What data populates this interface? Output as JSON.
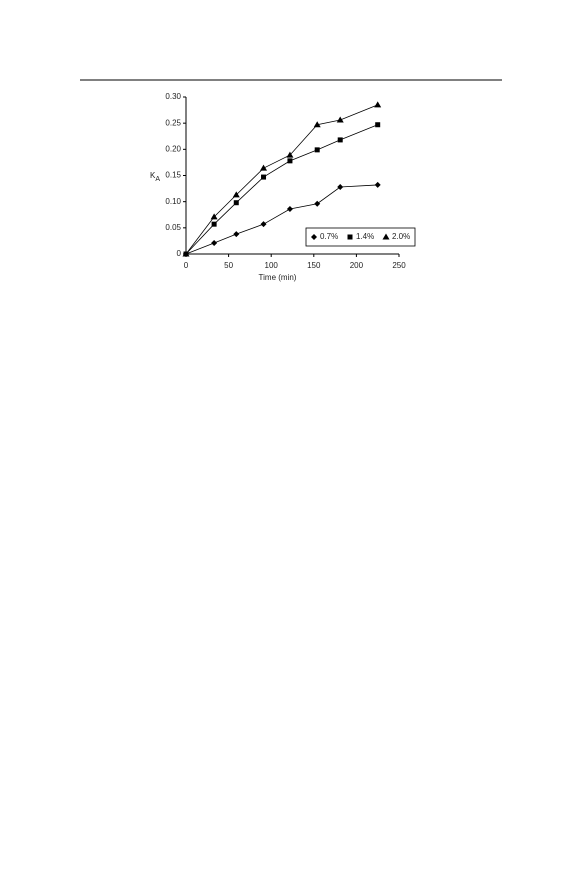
{
  "chart_data": {
    "type": "scatter",
    "xlabel": "Time (min)",
    "ylabel": "K",
    "ylabel_sub": "A",
    "x": [
      0,
      33,
      59,
      91,
      122,
      154,
      181,
      225
    ],
    "series": [
      {
        "name": "0.7%",
        "color": "#000000",
        "marker": "diamond",
        "values": [
          0,
          0.021,
          0.038,
          0.057,
          0.086,
          0.096,
          0.128,
          0.132
        ]
      },
      {
        "name": "1.4%",
        "color": "#000000",
        "marker": "square",
        "values": [
          0,
          0.057,
          0.098,
          0.147,
          0.178,
          0.199,
          0.218,
          0.247
        ]
      },
      {
        "name": "2.0%",
        "color": "#000000",
        "marker": "triangle",
        "values": [
          0,
          0.071,
          0.113,
          0.164,
          0.189,
          0.247,
          0.256,
          0.285
        ]
      }
    ],
    "xlim": [
      0,
      250
    ],
    "ylim": [
      0,
      0.3
    ],
    "xticks": [
      0,
      50,
      100,
      150,
      200,
      250
    ],
    "yticks": [
      0,
      0.05,
      {
        "value": 0.1,
        "label": "0.10"
      },
      0.15,
      {
        "value": 0.2,
        "label": "0.20"
      },
      0.25,
      {
        "value": 0.3,
        "label": "0.30"
      }
    ],
    "grid": false,
    "legend": "lower right",
    "trend_lines": true
  }
}
